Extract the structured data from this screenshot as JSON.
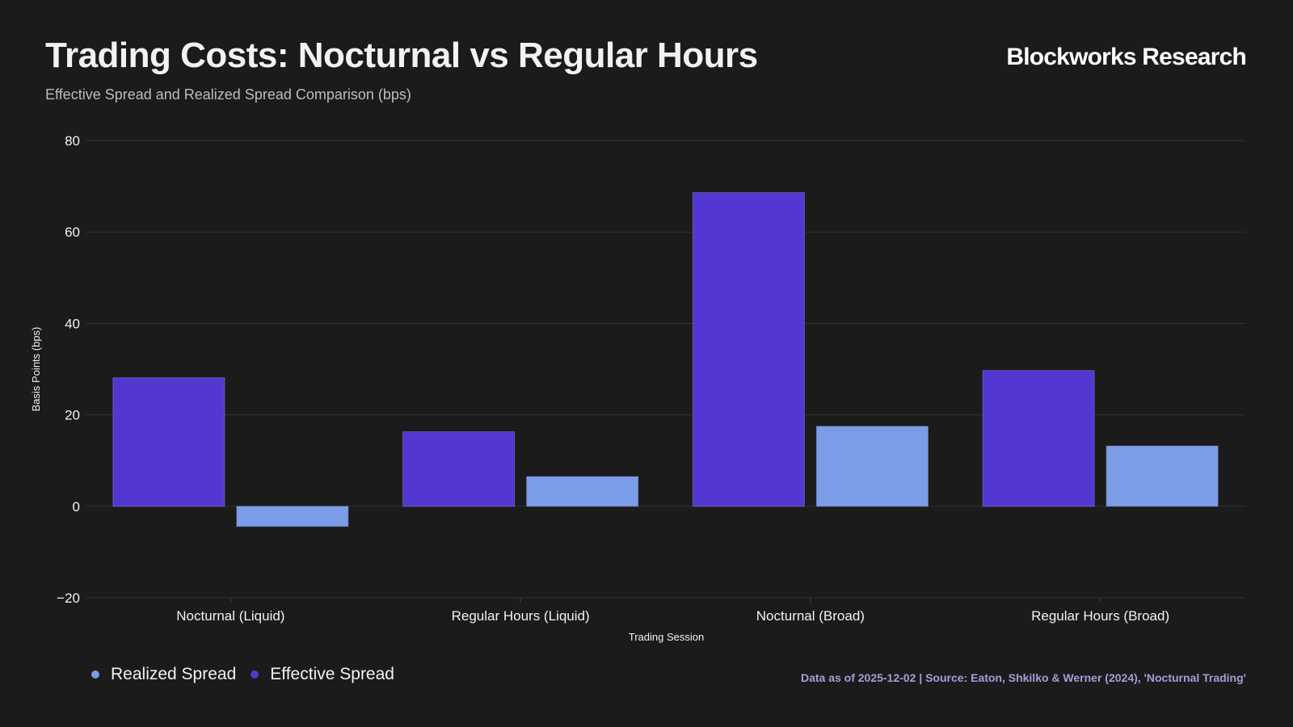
{
  "header": {
    "title": "Trading Costs: Nocturnal vs Regular Hours",
    "subtitle": "Effective Spread and Realized Spread Comparison (bps)",
    "brand": "Blockworks Research"
  },
  "footer": {
    "source": "Data as of 2025-12-02 | Source: Eaton, Shkilko & Werner (2024), 'Nocturnal Trading'"
  },
  "legend": {
    "items": [
      {
        "label": "Realized Spread",
        "color": "#7b9de8"
      },
      {
        "label": "Effective Spread",
        "color": "#5436d0"
      }
    ]
  },
  "chart_data": {
    "type": "bar",
    "title": "Trading Costs: Nocturnal vs Regular Hours",
    "subtitle": "Effective Spread and Realized Spread Comparison (bps)",
    "xlabel": "Trading Session",
    "ylabel": "Basis Points (bps)",
    "categories": [
      "Nocturnal (Liquid)",
      "Regular Hours (Liquid)",
      "Nocturnal (Broad)",
      "Regular Hours (Broad)"
    ],
    "series": [
      {
        "name": "Effective Spread",
        "values": [
          28.1,
          16.3,
          68.6,
          29.7
        ],
        "color": "#5436d0"
      },
      {
        "name": "Realized Spread",
        "values": [
          -4.4,
          6.5,
          17.5,
          13.2
        ],
        "color": "#7b9de8"
      }
    ],
    "ylim": [
      -20,
      80
    ],
    "yticks": [
      -20,
      0,
      20,
      40,
      60,
      80
    ],
    "ytick_labels": [
      "−20",
      "0",
      "20",
      "40",
      "60",
      "80"
    ],
    "grid": true,
    "legend_position": "bottom-left"
  }
}
